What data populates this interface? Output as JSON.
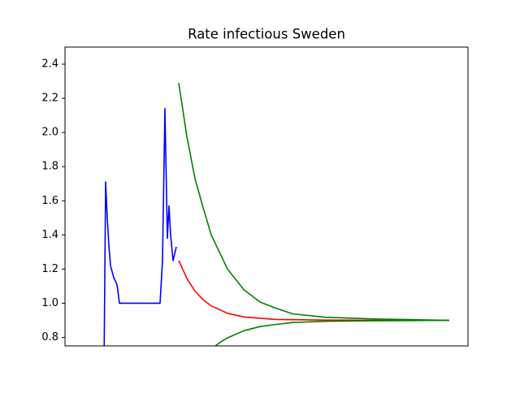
{
  "chart_data": {
    "type": "line",
    "title": "Rate infectious Sweden",
    "xlim": [
      0,
      248
    ],
    "ylim": [
      0.75,
      2.5
    ],
    "yticks": [
      0.8,
      {
        "value": 1.0,
        "label": "1.0"
      },
      1.2,
      1.4,
      1.6,
      1.8,
      {
        "value": 2.0,
        "label": "2.0"
      },
      2.2,
      2.4
    ],
    "series": [
      {
        "color": "#0000ff",
        "x": [
          24,
          25,
          26,
          27,
          28,
          30,
          32,
          33.5,
          58.5,
          60,
          61.5,
          63,
          64,
          65,
          66.5,
          68.5
        ],
        "values": [
          0.6,
          1.71,
          1.5,
          1.34,
          1.22,
          1.15,
          1.11,
          1.0,
          1.0,
          1.25,
          2.14,
          1.38,
          1.57,
          1.4,
          1.25,
          1.33
        ]
      },
      {
        "color": "#ff0000",
        "x": [
          70,
          75,
          80,
          85,
          90,
          100,
          110,
          120,
          130,
          160,
          200,
          236.5
        ],
        "values": [
          1.25,
          1.145,
          1.071,
          1.02,
          0.984,
          0.941,
          0.92,
          0.912,
          0.905,
          0.901,
          0.9,
          0.9
        ]
      },
      {
        "color": "#008000",
        "x": [
          70,
          75,
          80,
          85,
          90,
          100,
          110,
          120,
          130,
          140,
          160,
          190,
          236.5
        ],
        "values": [
          2.29,
          1.976,
          1.73,
          1.56,
          1.4,
          1.2,
          1.08,
          1.007,
          0.97,
          0.938,
          0.918,
          0.908,
          0.9
        ]
      },
      {
        "color": "#008000",
        "x": [
          91,
          95,
          100,
          110,
          120,
          130,
          140,
          160,
          190,
          236.5
        ],
        "values": [
          0.738,
          0.768,
          0.797,
          0.839,
          0.863,
          0.876,
          0.887,
          0.894,
          0.897,
          0.9
        ]
      }
    ]
  }
}
